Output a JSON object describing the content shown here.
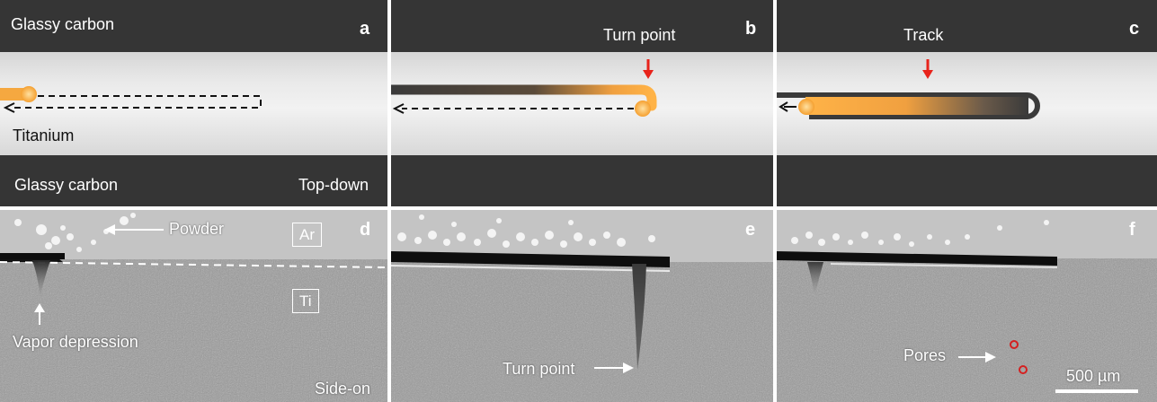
{
  "panels": {
    "a": {
      "letter": "a",
      "label_top": "Glassy carbon",
      "label_mid": "Titanium",
      "label_bottom_left": "Glassy carbon",
      "label_bottom_right": "Top-down"
    },
    "b": {
      "letter": "b",
      "label_top": "Turn point"
    },
    "c": {
      "letter": "c",
      "label_top": "Track"
    },
    "d": {
      "letter": "d",
      "powder_label": "Powder",
      "gas_label": "Ar",
      "metal_label": "Ti",
      "depression_label": "Vapor depression",
      "view_label": "Side-on"
    },
    "e": {
      "letter": "e",
      "turn_label": "Turn point"
    },
    "f": {
      "letter": "f",
      "pores_label": "Pores",
      "scale_label": "500 µm"
    }
  },
  "colors": {
    "carbon": "#333333",
    "titanium": "#e0e0e0",
    "melt": "#ffb347",
    "arrow_red": "#e8231b",
    "pore_red": "#d42020"
  }
}
